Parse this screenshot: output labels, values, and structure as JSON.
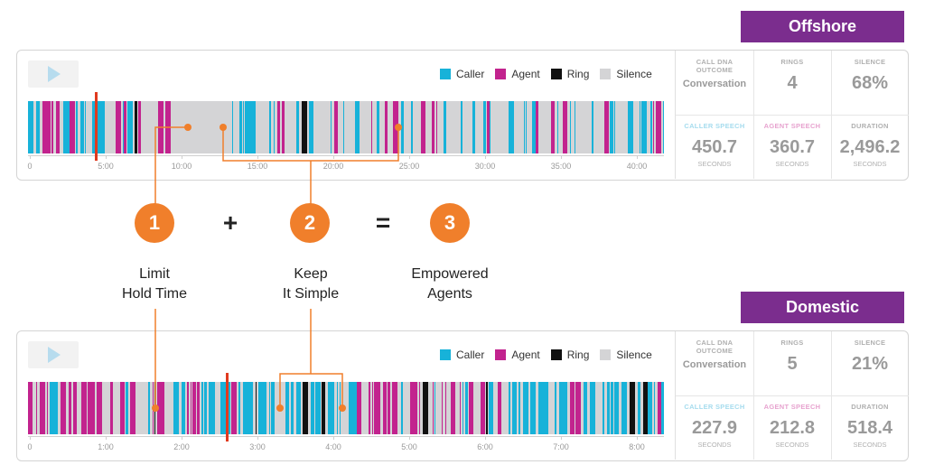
{
  "offshore": {
    "tag": "Offshore",
    "legend": [
      {
        "label": "Caller",
        "color": "#17b2d9"
      },
      {
        "label": "Agent",
        "color": "#c2238e"
      },
      {
        "label": "Ring",
        "color": "#111111"
      },
      {
        "label": "Silence",
        "color": "#d4d4d6"
      }
    ],
    "ticks": [
      "0",
      "5:00",
      "10:00",
      "15:00",
      "20:00",
      "25:00",
      "30:00",
      "35:00",
      "40:00"
    ],
    "stats": {
      "outcome_label": "CALL DNA OUTCOME",
      "outcome_value": "Conversation",
      "rings_label": "RINGS",
      "rings_value": "4",
      "silence_label": "SILENCE",
      "silence_value": "68%",
      "caller_label": "CALLER SPEECH",
      "caller_value": "450.7",
      "caller_unit": "SECONDS",
      "agent_label": "AGENT SPEECH",
      "agent_value": "360.7",
      "agent_unit": "SECONDS",
      "duration_label": "DURATION",
      "duration_value": "2,496.2",
      "duration_unit": "SECONDS"
    }
  },
  "domestic": {
    "tag": "Domestic",
    "legend": [
      {
        "label": "Caller",
        "color": "#17b2d9"
      },
      {
        "label": "Agent",
        "color": "#c2238e"
      },
      {
        "label": "Ring",
        "color": "#111111"
      },
      {
        "label": "Silence",
        "color": "#d4d4d6"
      }
    ],
    "ticks": [
      "0",
      "1:00",
      "2:00",
      "3:00",
      "4:00",
      "5:00",
      "6:00",
      "7:00",
      "8:00"
    ],
    "stats": {
      "outcome_label": "CALL DNA OUTCOME",
      "outcome_value": "Conversation",
      "rings_label": "RINGS",
      "rings_value": "5",
      "silence_label": "SILENCE",
      "silence_value": "21%",
      "caller_label": "CALLER SPEECH",
      "caller_value": "227.9",
      "caller_unit": "SECONDS",
      "agent_label": "AGENT SPEECH",
      "agent_value": "212.8",
      "agent_unit": "SECONDS",
      "duration_label": "DURATION",
      "duration_value": "518.4",
      "duration_unit": "SECONDS"
    }
  },
  "steps": [
    {
      "number": "1",
      "caption_line1": "Limit",
      "caption_line2": "Hold Time"
    },
    {
      "number": "2",
      "caption_line1": "Keep",
      "caption_line2": "It Simple"
    },
    {
      "number": "3",
      "caption_line1": "Empowered",
      "caption_line2": "Agents"
    }
  ],
  "operators": {
    "plus": "+",
    "equals": "="
  },
  "colors": {
    "caller": "#17b2d9",
    "agent": "#c2238e",
    "ring": "#111111",
    "silence": "#d4d4d6",
    "accent": "#f07f2b",
    "tag": "#7b2d8e",
    "marker": "#e03a1f"
  }
}
